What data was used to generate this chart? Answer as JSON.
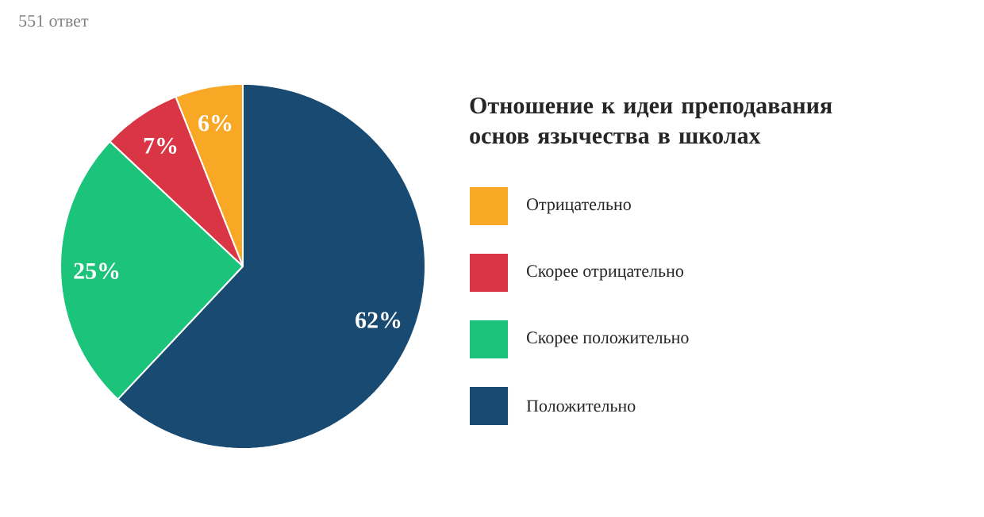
{
  "chart_data": {
    "type": "pie",
    "title": "Отношение к идеи преподавания основ язычества в школах",
    "subtitle": "551 ответ",
    "categories": [
      "Отрицательно",
      "Скорее отрицательно",
      "Скорее положительно",
      "Положительно"
    ],
    "values": [
      6,
      7,
      25,
      62
    ],
    "colors": [
      "#f9a826",
      "#d93545",
      "#1cc37a",
      "#184a72"
    ],
    "value_labels": [
      "6%",
      "7%",
      "25%",
      "62%"
    ],
    "legend": "right"
  }
}
